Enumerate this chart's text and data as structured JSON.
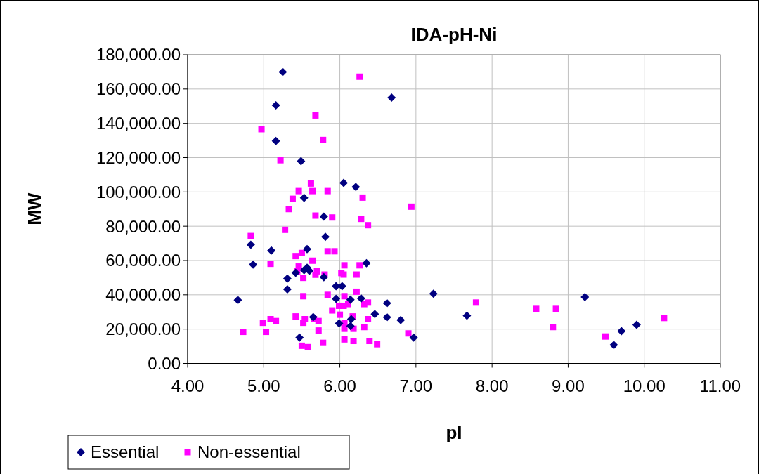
{
  "chart_data": {
    "type": "scatter",
    "title": "IDA-pH-Ni",
    "xlabel": "pI",
    "ylabel": "MW",
    "xlim": [
      4,
      11
    ],
    "xticks": [
      {
        "value": 4,
        "label": "4.00"
      },
      {
        "value": 5,
        "label": "5.00"
      },
      {
        "value": 6,
        "label": "6.00"
      },
      {
        "value": 7,
        "label": "7.00"
      },
      {
        "value": 8,
        "label": "8.00"
      },
      {
        "value": 9,
        "label": "9.00"
      },
      {
        "value": 10,
        "label": "10.00"
      },
      {
        "value": 11,
        "label": "11.00"
      }
    ],
    "ylim": [
      0,
      180000
    ],
    "yticks": [
      {
        "value": 0,
        "label": "0.00"
      },
      {
        "value": 20000,
        "label": "20,000.00"
      },
      {
        "value": 40000,
        "label": "40,000.00"
      },
      {
        "value": 60000,
        "label": "60,000.00"
      },
      {
        "value": 80000,
        "label": "80,000.00"
      },
      {
        "value": 100000,
        "label": "100,000.00"
      },
      {
        "value": 120000,
        "label": "120,000.00"
      },
      {
        "value": 140000,
        "label": "140,000.00"
      },
      {
        "value": 160000,
        "label": "160,000.00"
      },
      {
        "value": 180000,
        "label": "180,000.00"
      }
    ],
    "grid": true,
    "legend": "bottom left",
    "series": [
      {
        "name": "Essential",
        "color": "#000080",
        "marker": "diamond",
        "x": [
          5.25,
          5.16,
          5.16,
          5.49,
          6.05,
          6.21,
          5.53,
          6.68,
          5.79,
          5.81,
          4.83,
          5.1,
          5.57,
          4.86,
          6.35,
          5.57,
          5.53,
          5.6,
          5.42,
          5.79,
          5.31,
          5.31,
          5.95,
          6.03,
          4.66,
          5.95,
          6.14,
          6.28,
          5.65,
          6.15,
          5.99,
          6.14,
          5.47,
          7.23,
          6.62,
          6.46,
          6.62,
          6.8,
          6.97,
          7.67,
          9.22,
          9.6,
          9.7,
          9.9
        ],
        "values": [
          170000,
          150500,
          129700,
          118000,
          105300,
          102900,
          96600,
          155000,
          85600,
          73800,
          69200,
          65800,
          66700,
          57600,
          58500,
          55800,
          54400,
          54000,
          52800,
          50300,
          49500,
          43200,
          45100,
          45100,
          37000,
          37700,
          37200,
          37900,
          27000,
          25800,
          23300,
          21800,
          15100,
          40600,
          35100,
          28800,
          26900,
          25300,
          15100,
          27800,
          38700,
          10800,
          18800,
          22500
        ]
      },
      {
        "name": "Non-essential",
        "color": "#ff00ff",
        "marker": "square",
        "x": [
          5.68,
          4.97,
          5.78,
          5.22,
          5.62,
          5.46,
          5.64,
          5.84,
          5.38,
          6.3,
          5.33,
          6.26,
          6.94,
          5.68,
          5.9,
          6.28,
          5.28,
          4.83,
          5.5,
          5.42,
          5.84,
          5.93,
          5.64,
          5.09,
          6.06,
          6.26,
          5.46,
          5.44,
          5.7,
          5.68,
          5.8,
          5.52,
          6.02,
          6.05,
          6.22,
          6.22,
          5.52,
          5.84,
          6.06,
          6.32,
          5.99,
          6.05,
          6.11,
          5.9,
          6,
          5.42,
          6.17,
          5.54,
          5.66,
          5.72,
          5.09,
          5.16,
          5.52,
          4.99,
          6.06,
          6.06,
          6.18,
          6.32,
          5.72,
          4.73,
          5.03,
          5.78,
          6.06,
          6.18,
          5.5,
          5.58,
          6.37,
          6.37,
          6.37,
          6.9,
          6.39,
          6.49,
          7.79,
          8.58,
          8.84,
          8.8,
          9.49,
          10.26
        ],
        "values": [
          144600,
          136600,
          130300,
          118500,
          104900,
          100500,
          100500,
          100500,
          96000,
          96700,
          90000,
          167200,
          91400,
          86200,
          85100,
          84300,
          77900,
          74300,
          64400,
          62600,
          65400,
          65400,
          59900,
          58100,
          57200,
          57200,
          56500,
          53700,
          53700,
          51700,
          51800,
          49900,
          52700,
          51800,
          51800,
          41800,
          39200,
          40000,
          39200,
          34600,
          33600,
          33600,
          34600,
          30900,
          28400,
          27400,
          27400,
          25800,
          25800,
          24700,
          25800,
          24700,
          23700,
          23700,
          23700,
          20200,
          20200,
          21200,
          19200,
          18400,
          18400,
          12000,
          14000,
          13100,
          10300,
          9500,
          80600,
          35500,
          25800,
          17500,
          13100,
          11200,
          35500,
          31800,
          31800,
          21200,
          15700,
          26500
        ]
      }
    ]
  }
}
